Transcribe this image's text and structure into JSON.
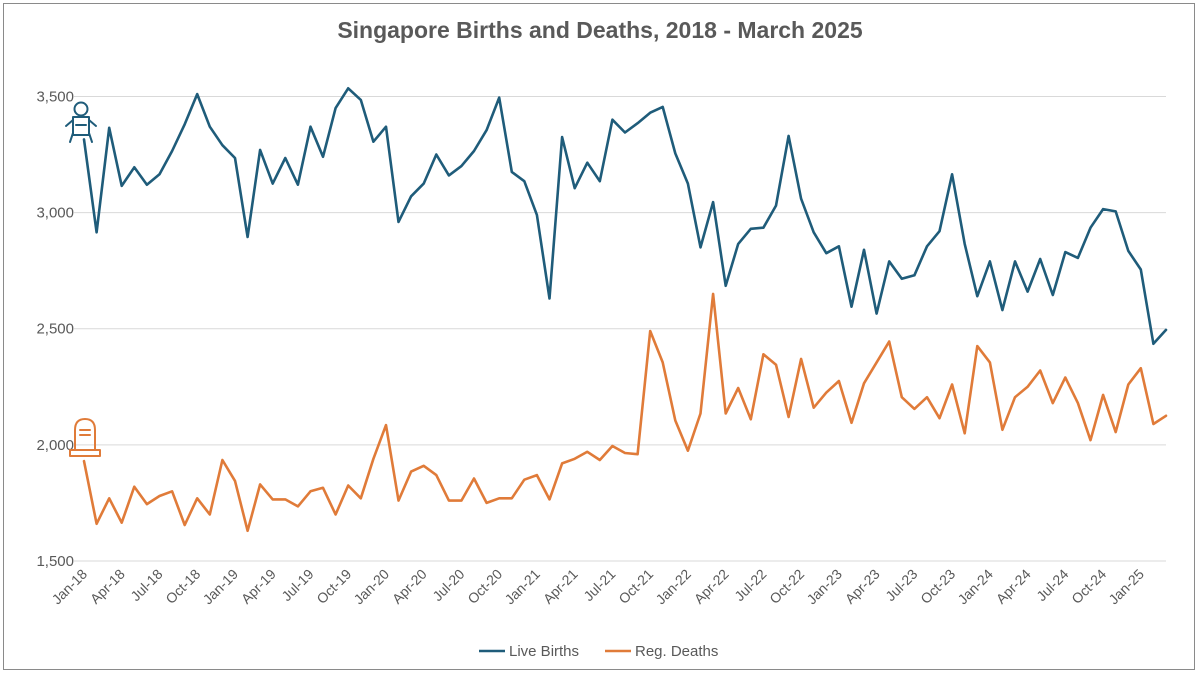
{
  "chart_data": {
    "type": "line",
    "title": "Singapore Births and Deaths, 2018 - March 2025",
    "xlabel": "",
    "ylabel": "",
    "ylim": [
      1500,
      3700
    ],
    "yticks": [
      1500,
      2000,
      2500,
      3000,
      3500
    ],
    "ytick_labels": [
      "1,500",
      "2,000",
      "2,500",
      "3,000",
      "3,500"
    ],
    "grid": true,
    "legend_position": "bottom",
    "x": [
      "Jan-18",
      "Feb-18",
      "Mar-18",
      "Apr-18",
      "May-18",
      "Jun-18",
      "Jul-18",
      "Aug-18",
      "Sep-18",
      "Oct-18",
      "Nov-18",
      "Dec-18",
      "Jan-19",
      "Feb-19",
      "Mar-19",
      "Apr-19",
      "May-19",
      "Jun-19",
      "Jul-19",
      "Aug-19",
      "Sep-19",
      "Oct-19",
      "Nov-19",
      "Dec-19",
      "Jan-20",
      "Feb-20",
      "Mar-20",
      "Apr-20",
      "May-20",
      "Jun-20",
      "Jul-20",
      "Aug-20",
      "Sep-20",
      "Oct-20",
      "Nov-20",
      "Dec-20",
      "Jan-21",
      "Feb-21",
      "Mar-21",
      "Apr-21",
      "May-21",
      "Jun-21",
      "Jul-21",
      "Aug-21",
      "Sep-21",
      "Oct-21",
      "Nov-21",
      "Dec-21",
      "Jan-22",
      "Feb-22",
      "Mar-22",
      "Apr-22",
      "May-22",
      "Jun-22",
      "Jul-22",
      "Aug-22",
      "Sep-22",
      "Oct-22",
      "Nov-22",
      "Dec-22",
      "Jan-23",
      "Feb-23",
      "Mar-23",
      "Apr-23",
      "May-23",
      "Jun-23",
      "Jul-23",
      "Aug-23",
      "Sep-23",
      "Oct-23",
      "Nov-23",
      "Dec-23",
      "Jan-24",
      "Feb-24",
      "Mar-24",
      "Apr-24",
      "May-24",
      "Jun-24",
      "Jul-24",
      "Aug-24",
      "Sep-24",
      "Oct-24",
      "Nov-24",
      "Dec-24",
      "Jan-25",
      "Feb-25",
      "Mar-25"
    ],
    "xtick_labels": [
      "Jan-18",
      "Apr-18",
      "Jul-18",
      "Oct-18",
      "Jan-19",
      "Apr-19",
      "Jul-19",
      "Oct-19",
      "Jan-20",
      "Apr-20",
      "Jul-20",
      "Oct-20",
      "Jan-21",
      "Apr-21",
      "Jul-21",
      "Oct-21",
      "Jan-22",
      "Apr-22",
      "Jul-22",
      "Oct-22",
      "Jan-23",
      "Apr-23",
      "Jul-23",
      "Oct-23",
      "Jan-24",
      "Apr-24",
      "Jul-24",
      "Oct-24",
      "Jan-25"
    ],
    "series": [
      {
        "name": "Live Births",
        "color": "#1f5c7a",
        "icon": "baby-icon",
        "values": [
          3315,
          2915,
          3365,
          3115,
          3195,
          3120,
          3165,
          3265,
          3380,
          3510,
          3370,
          3290,
          3235,
          2895,
          3270,
          3125,
          3235,
          3120,
          3370,
          3240,
          3450,
          3535,
          3485,
          3305,
          3370,
          2960,
          3070,
          3125,
          3250,
          3160,
          3200,
          3265,
          3355,
          3495,
          3175,
          3135,
          2990,
          2630,
          3325,
          3105,
          3215,
          3135,
          3400,
          3345,
          3385,
          3430,
          3455,
          3255,
          3125,
          2850,
          3045,
          2685,
          2865,
          2930,
          2935,
          3030,
          3330,
          3060,
          2915,
          2825,
          2855,
          2595,
          2840,
          2565,
          2790,
          2715,
          2730,
          2855,
          2920,
          3165,
          2865,
          2640,
          2790,
          2580,
          2790,
          2660,
          2800,
          2645,
          2830,
          2805,
          2935,
          3015,
          3005,
          2835,
          2755,
          2435,
          2495
        ]
      },
      {
        "name": "Reg. Deaths",
        "color": "#e07b39",
        "icon": "tombstone-icon",
        "values": [
          1930,
          1660,
          1770,
          1665,
          1820,
          1745,
          1780,
          1800,
          1655,
          1770,
          1700,
          1935,
          1845,
          1630,
          1830,
          1765,
          1765,
          1735,
          1800,
          1815,
          1700,
          1825,
          1770,
          1940,
          2085,
          1760,
          1885,
          1910,
          1870,
          1760,
          1760,
          1855,
          1750,
          1770,
          1770,
          1850,
          1870,
          1765,
          1920,
          1940,
          1970,
          1935,
          1995,
          1965,
          1960,
          2490,
          2355,
          2105,
          1975,
          2135,
          2650,
          2135,
          2245,
          2110,
          2390,
          2345,
          2120,
          2370,
          2160,
          2225,
          2275,
          2095,
          2265,
          2355,
          2445,
          2205,
          2155,
          2205,
          2115,
          2260,
          2050,
          2425,
          2355,
          2065,
          2205,
          2250,
          2320,
          2180,
          2290,
          2180,
          2020,
          2215,
          2055,
          2260,
          2330,
          2090,
          2125
        ]
      }
    ]
  }
}
